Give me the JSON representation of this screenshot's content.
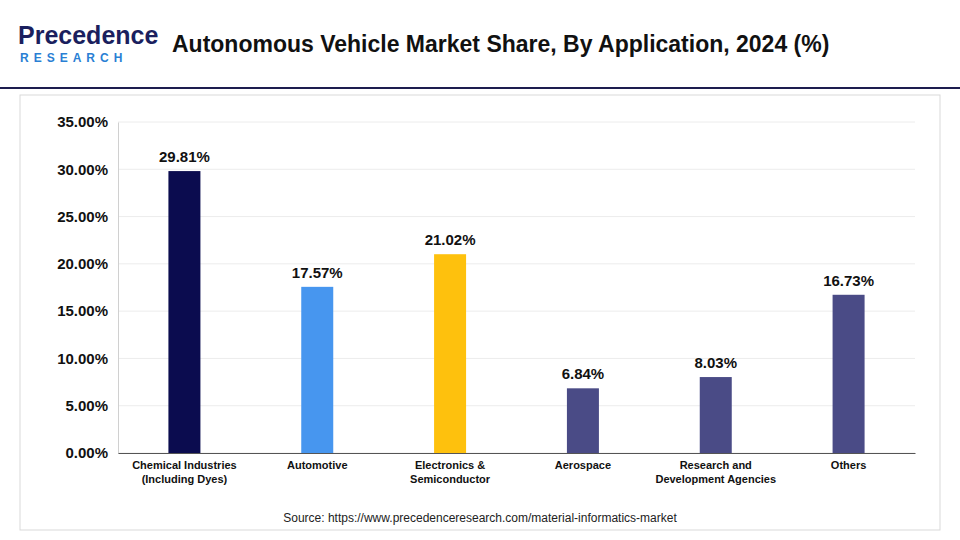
{
  "chart_data": {
    "type": "bar",
    "title": "Autonomous Vehicle Market Share, By Application, 2024 (%)",
    "logo": [
      "Precedence",
      "RESEARCH"
    ],
    "source": "Source: https://www.precedenceresearch.com/material-informatics-market",
    "categories": [
      "Chemical Industries\n(Including Dyes)",
      "Automotive",
      "Electronics &\nSemiconductor",
      "Aerospace",
      "Research and\nDevelopment Agencies",
      "Others"
    ],
    "values": [
      29.81,
      17.57,
      21.02,
      6.84,
      8.03,
      16.73
    ],
    "value_labels": [
      "29.81%",
      "17.57%",
      "21.02%",
      "6.84%",
      "8.03%",
      "16.73%"
    ],
    "colors": [
      "#0b0c4f",
      "#4796ef",
      "#fec10d",
      "#4a4b86",
      "#4a4b86",
      "#4a4b86"
    ],
    "ylim": [
      0,
      35
    ],
    "yticks": [
      {
        "value": 0,
        "label": "0.00%"
      },
      {
        "value": 5,
        "label": "5.00%"
      },
      {
        "value": 10,
        "label": "10.00%"
      },
      {
        "value": 15,
        "label": "15.00%"
      },
      {
        "value": 20,
        "label": "20.00%"
      },
      {
        "value": 25,
        "label": "25.00%"
      },
      {
        "value": 30,
        "label": "30.00%"
      },
      {
        "value": 35,
        "label": "35.00%"
      }
    ],
    "grid": true,
    "data_labels": true
  }
}
